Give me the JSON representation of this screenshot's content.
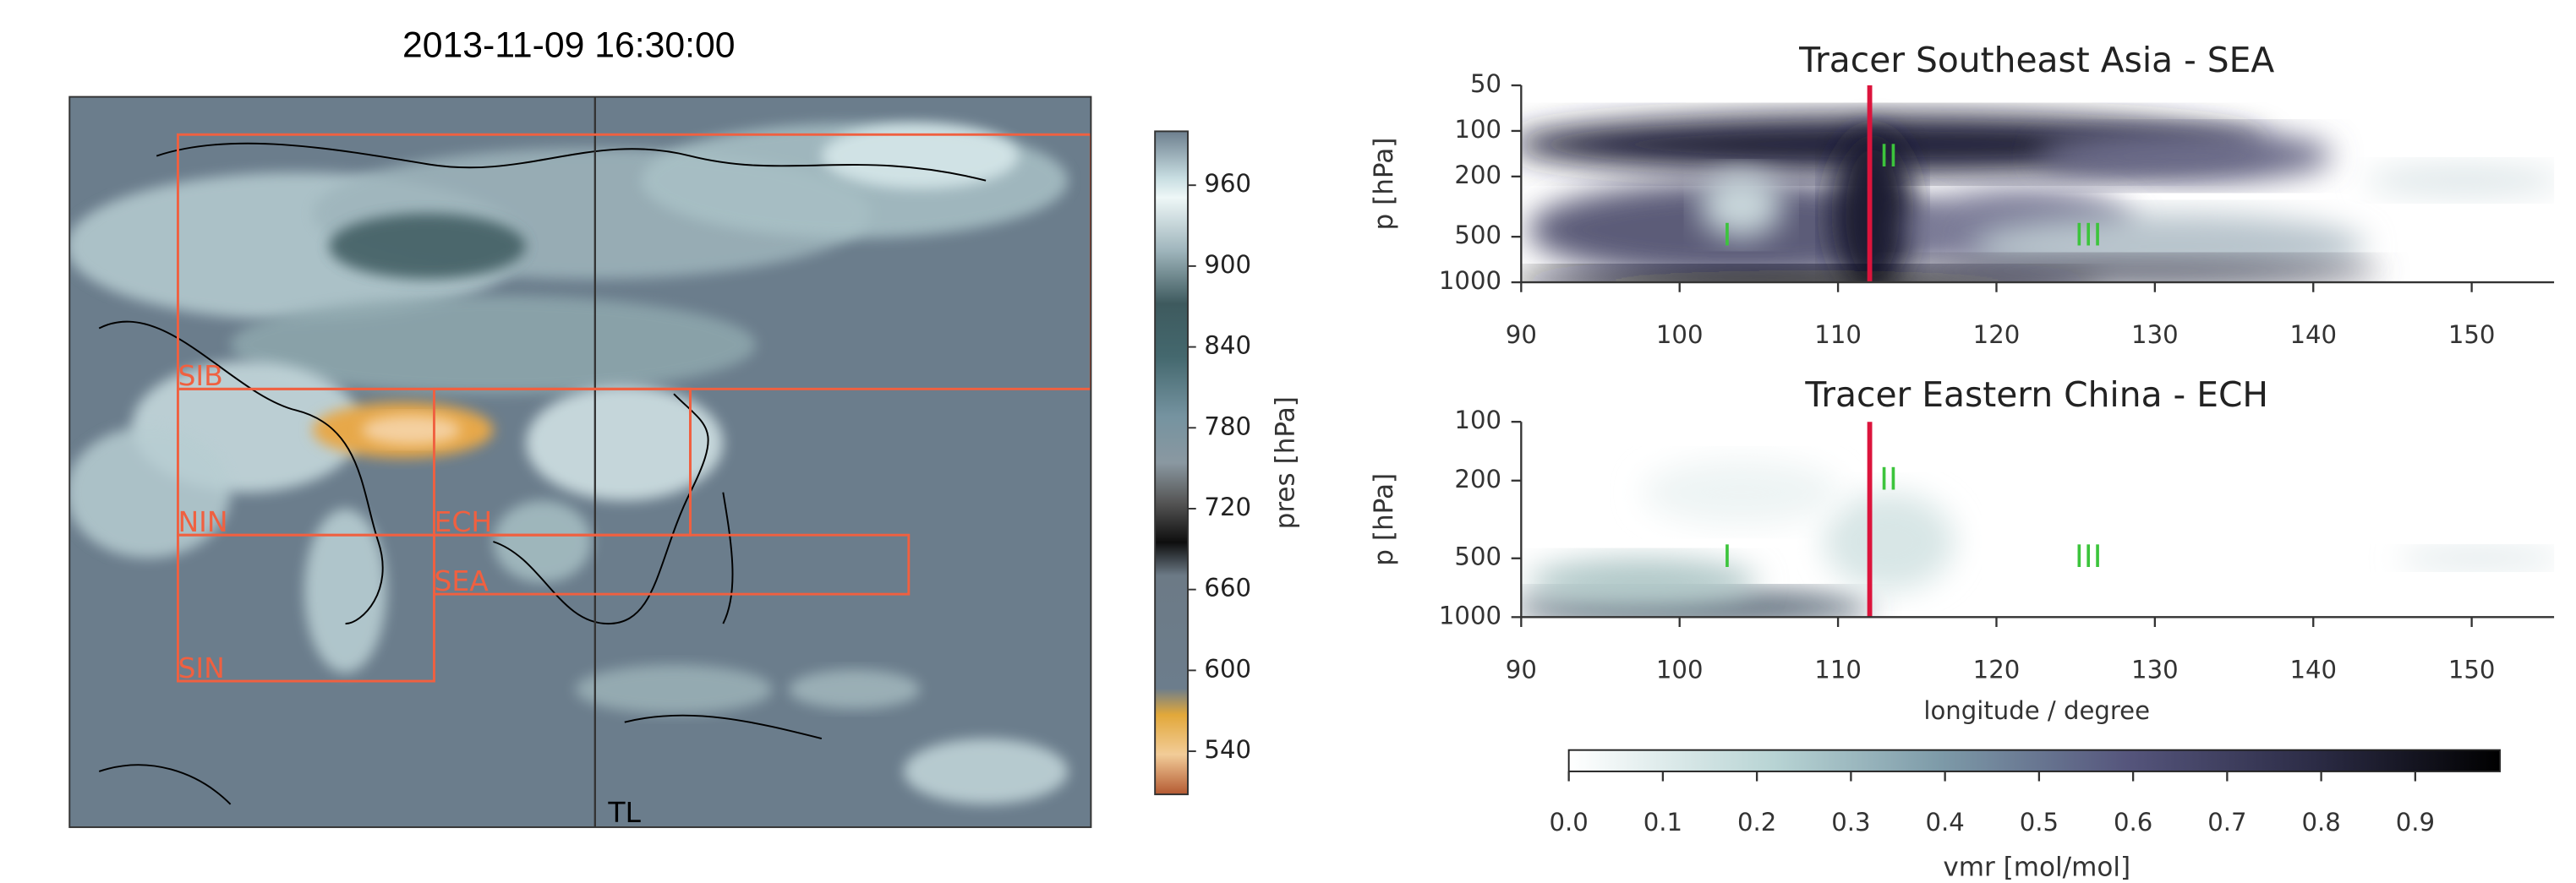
{
  "chart_data": [
    {
      "type": "map",
      "title": "2013-11-09 16:30:00",
      "regions": [
        "SIB",
        "NIN",
        "ECH",
        "SEA",
        "SIN"
      ],
      "annotations": [
        "TL"
      ],
      "colorbar": {
        "label": "pres [hPa]",
        "lim": [
          508,
          1000
        ],
        "ticks": [
          540,
          600,
          660,
          720,
          780,
          840,
          900,
          960
        ]
      }
    },
    {
      "type": "heatmap",
      "title": "Tracer Southeast Asia - SEA",
      "ylabel": "p [hPa]",
      "yscale": "log",
      "xlim": [
        90,
        155.2
      ],
      "xticks": [
        90,
        100,
        110,
        120,
        130,
        140,
        150
      ],
      "ylim": [
        50,
        1000
      ],
      "yticks": [
        50,
        100,
        200,
        500,
        1000
      ],
      "marker_x": 112,
      "marker_color": "#dc143c",
      "annotations": [
        {
          "text": "I",
          "x": 103,
          "y": 500
        },
        {
          "text": "II",
          "x": 113.2,
          "y": 150
        },
        {
          "text": "III",
          "x": 125.8,
          "y": 500
        }
      ]
    },
    {
      "type": "heatmap",
      "title": "Tracer Eastern China - ECH",
      "ylabel": "p [hPa]",
      "xlabel": "longitude / degree",
      "yscale": "log",
      "xlim": [
        90,
        155.2
      ],
      "xticks": [
        90,
        100,
        110,
        120,
        130,
        140,
        150
      ],
      "ylim": [
        100,
        1000
      ],
      "yticks": [
        100,
        200,
        500,
        1000
      ],
      "marker_x": 112,
      "marker_color": "#dc143c",
      "annotations": [
        {
          "text": "I",
          "x": 103,
          "y": 500
        },
        {
          "text": "II",
          "x": 113.2,
          "y": 200
        },
        {
          "text": "III",
          "x": 125.8,
          "y": 500
        }
      ]
    },
    {
      "type": "colorbar",
      "label": "vmr [mol/mol]",
      "lim": [
        0,
        0.99
      ],
      "ticks": [
        {
          "value": 0,
          "label": "0.0"
        },
        0.1,
        0.2,
        0.3,
        0.4,
        0.5,
        0.6,
        0.7,
        0.8,
        0.9
      ]
    }
  ]
}
